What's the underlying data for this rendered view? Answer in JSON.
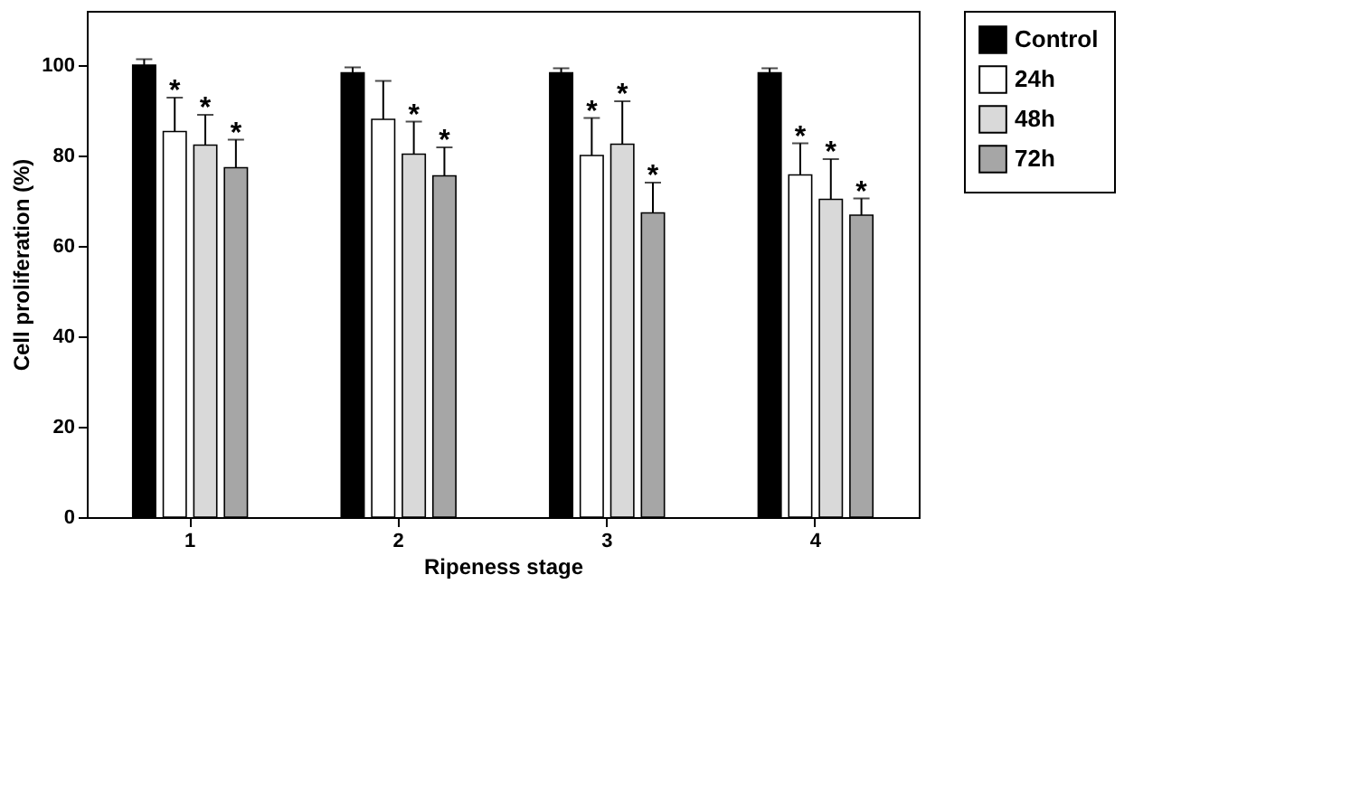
{
  "chart_data": {
    "type": "bar",
    "xlabel": "Ripeness stage",
    "ylabel": "Cell proliferation (%)",
    "categories": [
      "1",
      "2",
      "3",
      "4"
    ],
    "series": [
      {
        "name": "Control",
        "color": "#000000",
        "values": [
          100,
          98.3,
          98.3,
          98.3
        ],
        "errors": [
          [
            100,
            101.3
          ],
          [
            98.3,
            99.5
          ],
          [
            98.3,
            99.3
          ],
          [
            98.3,
            99.3
          ]
        ]
      },
      {
        "name": "24h",
        "color": "#ffffff",
        "values": [
          85.3,
          88,
          80,
          75.7
        ],
        "errors": [
          [
            85.3,
            92.8
          ],
          [
            88,
            96.5
          ],
          [
            80,
            88.3
          ],
          [
            75.7,
            82.7
          ]
        ]
      },
      {
        "name": "48h",
        "color": "#d9d9d9",
        "values": [
          82.3,
          80.3,
          82.5,
          70.3
        ],
        "errors": [
          [
            82.3,
            89
          ],
          [
            80.3,
            87.5
          ],
          [
            82.5,
            92
          ],
          [
            70.3,
            79.2
          ]
        ]
      },
      {
        "name": "72h",
        "color": "#a6a6a6",
        "values": [
          77.3,
          75.5,
          67.3,
          66.8
        ],
        "errors": [
          [
            77.3,
            83.5
          ],
          [
            75.5,
            81.8
          ],
          [
            67.3,
            74
          ],
          [
            66.8,
            70.5
          ]
        ]
      }
    ],
    "annotations": [
      {
        "text": "*",
        "x": "1",
        "y": 92.8
      },
      {
        "text": "*",
        "x": "1",
        "y": 89
      },
      {
        "text": "*",
        "x": "1",
        "y": 83.5
      },
      {
        "text": "*",
        "x": "2",
        "y": 87.5
      },
      {
        "text": "*",
        "x": "2",
        "y": 81.8
      },
      {
        "text": "*",
        "x": "3",
        "y": 88.3
      },
      {
        "text": "*",
        "x": "3",
        "y": 92
      },
      {
        "text": "*",
        "x": "3",
        "y": 74
      },
      {
        "text": "*",
        "x": "4",
        "y": 82.7
      },
      {
        "text": "*",
        "x": "4",
        "y": 79.2
      },
      {
        "text": "*",
        "x": "4",
        "y": 70.5
      }
    ],
    "ylim": [
      0,
      112
    ],
    "yticks": [
      0,
      20,
      40,
      60,
      80,
      100
    ],
    "grid": false,
    "legend": "top right"
  }
}
